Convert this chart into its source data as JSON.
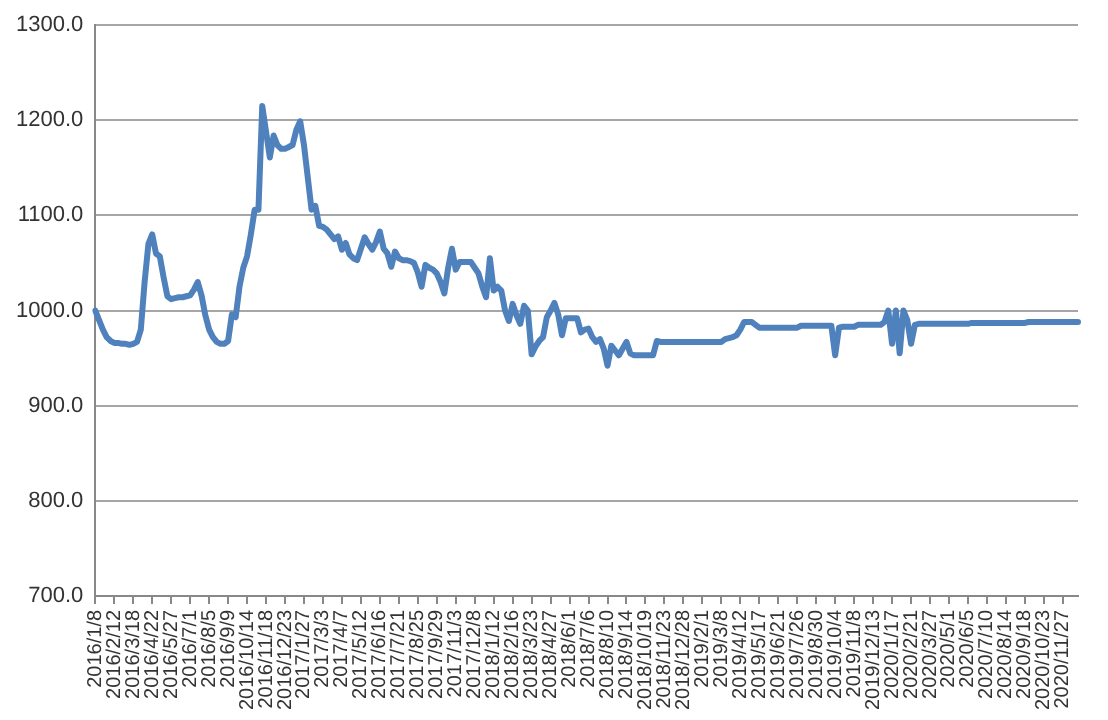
{
  "chart_data": {
    "type": "line",
    "categories": [
      "2016/1/8",
      null,
      null,
      null,
      null,
      "2016/2/12",
      null,
      null,
      null,
      null,
      "2016/3/18",
      null,
      null,
      null,
      null,
      "2016/4/22",
      null,
      null,
      null,
      null,
      "2016/5/27",
      null,
      null,
      null,
      null,
      "2016/7/1",
      null,
      null,
      null,
      null,
      "2016/8/5",
      null,
      null,
      null,
      null,
      "2016/9/9",
      null,
      null,
      null,
      null,
      "2016/10/14",
      null,
      null,
      null,
      null,
      "2016/11/18",
      null,
      null,
      null,
      null,
      "2016/12/23",
      null,
      null,
      null,
      null,
      "2017/1/27",
      null,
      null,
      null,
      null,
      "2017/3/3",
      null,
      null,
      null,
      null,
      "2017/4/7",
      null,
      null,
      null,
      null,
      "2017/5/12",
      null,
      null,
      null,
      null,
      "2017/6/16",
      null,
      null,
      null,
      null,
      "2017/7/21",
      null,
      null,
      null,
      null,
      "2017/8/25",
      null,
      null,
      null,
      null,
      "2017/9/29",
      null,
      null,
      null,
      null,
      "2017/11/3",
      null,
      null,
      null,
      null,
      "2017/12/8",
      null,
      null,
      null,
      null,
      "2018/1/12",
      null,
      null,
      null,
      null,
      "2018/2/16",
      null,
      null,
      null,
      null,
      "2018/3/23",
      null,
      null,
      null,
      null,
      "2018/4/27",
      null,
      null,
      null,
      null,
      "2018/6/1",
      null,
      null,
      null,
      null,
      "2018/7/6",
      null,
      null,
      null,
      null,
      "2018/8/10",
      null,
      null,
      null,
      null,
      "2018/9/14",
      null,
      null,
      null,
      null,
      "2018/10/19",
      null,
      null,
      null,
      null,
      "2018/11/23",
      null,
      null,
      null,
      null,
      "2018/12/28",
      null,
      null,
      null,
      null,
      "2019/2/1",
      null,
      null,
      null,
      null,
      "2019/3/8",
      null,
      null,
      null,
      null,
      "2019/4/12",
      null,
      null,
      null,
      null,
      "2019/5/17",
      null,
      null,
      null,
      null,
      "2019/6/21",
      null,
      null,
      null,
      null,
      "2019/7/26",
      null,
      null,
      null,
      null,
      "2019/8/30",
      null,
      null,
      null,
      null,
      "2019/10/4",
      null,
      null,
      null,
      null,
      "2019/11/8",
      null,
      null,
      null,
      null,
      "2019/12/13",
      null,
      null,
      null,
      null,
      "2020/1/17",
      null,
      null,
      null,
      null,
      "2020/2/21",
      null,
      null,
      null,
      null,
      "2020/3/27",
      null,
      null,
      null,
      null,
      "2020/5/1",
      null,
      null,
      null,
      null,
      "2020/6/5",
      null,
      null,
      null,
      null,
      "2020/7/10",
      null,
      null,
      null,
      null,
      "2020/8/14",
      null,
      null,
      null,
      null,
      "2020/9/18",
      null,
      null,
      null,
      null,
      "2020/10/23",
      null,
      null,
      null,
      null,
      "2020/11/27",
      null,
      null,
      null,
      null
    ],
    "series": [
      {
        "color": "#4f81bd",
        "values": [
          1000,
          990,
          980,
          972,
          968,
          966,
          966,
          965,
          965,
          964,
          965,
          967,
          980,
          1030,
          1070,
          1080,
          1060,
          1057,
          1035,
          1015,
          1012,
          1013,
          1014,
          1014,
          1015,
          1016,
          1022,
          1030,
          1016,
          995,
          980,
          972,
          967,
          965,
          965,
          968,
          996,
          993,
          1025,
          1045,
          1057,
          1080,
          1106,
          1106,
          1215,
          1188,
          1161,
          1184,
          1174,
          1170,
          1170,
          1172,
          1174,
          1190,
          1199,
          1174,
          1140,
          1106,
          1110,
          1089,
          1088,
          1085,
          1080,
          1075,
          1078,
          1064,
          1071,
          1059,
          1055,
          1053,
          1065,
          1077,
          1070,
          1064,
          1072,
          1083,
          1065,
          1060,
          1046,
          1062,
          1055,
          1053,
          1053,
          1052,
          1050,
          1040,
          1025,
          1048,
          1045,
          1043,
          1039,
          1030,
          1018,
          1045,
          1065,
          1043,
          1051,
          1051,
          1051,
          1051,
          1045,
          1039,
          1025,
          1014,
          1055,
          1021,
          1025,
          1021,
          1000,
          989,
          1007,
          995,
          986,
          1005,
          1000,
          954,
          962,
          968,
          972,
          993,
          1000,
          1008,
          996,
          974,
          992,
          992,
          992,
          992,
          977,
          980,
          981,
          972,
          967,
          970,
          960,
          942,
          963,
          958,
          953,
          960,
          967,
          955,
          953,
          953,
          953,
          953,
          953,
          953,
          968,
          967,
          967,
          967,
          967,
          967,
          967,
          967,
          967,
          967,
          967,
          967,
          967,
          967,
          967,
          967,
          967,
          967,
          970,
          971,
          972,
          974,
          980,
          988,
          988,
          988,
          985,
          982,
          982,
          982,
          982,
          982,
          982,
          982,
          982,
          982,
          982,
          982,
          984,
          984,
          984,
          984,
          984,
          984,
          984,
          984,
          984,
          953,
          982,
          983,
          983,
          983,
          983,
          985,
          985,
          985,
          985,
          985,
          985,
          985,
          988,
          1000,
          965,
          1000,
          955,
          1000,
          990,
          965,
          985,
          986,
          986,
          986,
          986,
          986,
          986,
          986,
          986,
          986,
          986,
          986,
          986,
          986,
          986,
          987,
          987,
          987,
          987,
          987,
          987,
          987,
          987,
          987,
          987,
          987,
          987,
          987,
          987,
          987,
          988,
          988,
          988,
          988,
          988,
          988,
          988,
          988,
          988,
          988,
          988,
          988,
          988,
          988
        ]
      }
    ],
    "ylim": [
      700,
      1300
    ],
    "yticks": [
      {
        "value": 700,
        "label": "700.0"
      },
      {
        "value": 800,
        "label": "800.0"
      },
      {
        "value": 900,
        "label": "900.0"
      },
      {
        "value": 1000,
        "label": "1000.0"
      },
      {
        "value": 1100,
        "label": "1100.0"
      },
      {
        "value": 1200,
        "label": "1200.0"
      },
      {
        "value": 1300,
        "label": "1300.0"
      }
    ],
    "grid": "y",
    "marker": "none",
    "line_style": "solid",
    "legend": false
  }
}
